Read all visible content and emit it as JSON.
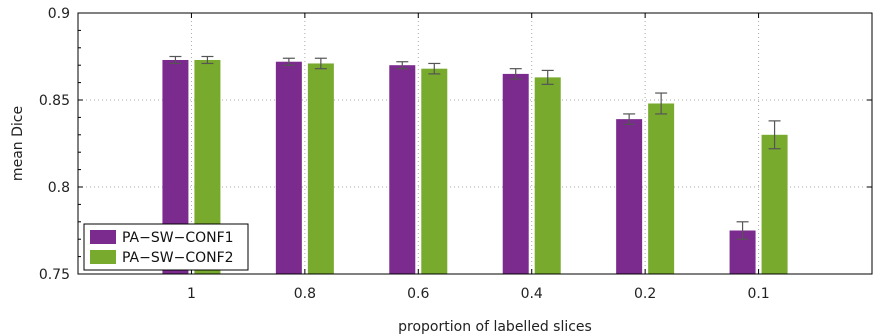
{
  "chart_data": {
    "type": "bar",
    "title": "",
    "xlabel": "proportion of labelled slices",
    "ylabel": "mean Dice",
    "categories": [
      "1",
      "0.8",
      "0.6",
      "0.4",
      "0.2",
      "0.1"
    ],
    "ylim": [
      0.75,
      0.9
    ],
    "yticks": [
      "0.75",
      "0.8",
      "0.85",
      "0.9"
    ],
    "grid": true,
    "legend_position": "bottom-left",
    "series": [
      {
        "name": "PA−SW−CONF1",
        "color": "#7b2a8e",
        "values": [
          0.873,
          0.872,
          0.87,
          0.865,
          0.839,
          0.775
        ],
        "errors": [
          0.002,
          0.002,
          0.002,
          0.003,
          0.003,
          0.005
        ]
      },
      {
        "name": "PA−SW−CONF2",
        "color": "#78aa2d",
        "values": [
          0.873,
          0.871,
          0.868,
          0.863,
          0.848,
          0.83
        ],
        "errors": [
          0.002,
          0.003,
          0.003,
          0.004,
          0.006,
          0.008
        ]
      }
    ]
  }
}
